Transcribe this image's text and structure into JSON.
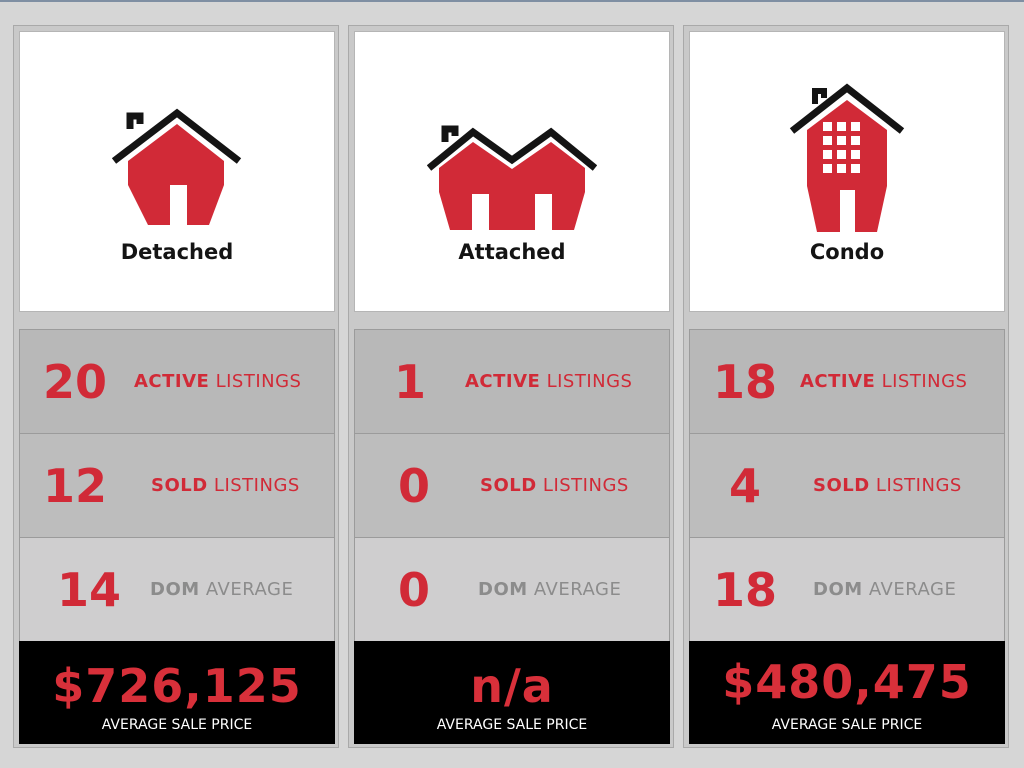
{
  "colors": {
    "accent": "#d12a37",
    "panel": "#c9c9c9",
    "price_bg": "#000000"
  },
  "columns": [
    {
      "icon": "detached-house-icon",
      "title": "Detached",
      "active": {
        "value": "20",
        "hl": "ACTIVE",
        "rest": "LISTINGS"
      },
      "sold": {
        "value": "12",
        "hl": "SOLD",
        "rest": "LISTINGS"
      },
      "dom": {
        "value": "14",
        "hl": "DOM",
        "rest": "AVERAGE"
      },
      "price": {
        "value": "$726,125",
        "label": "AVERAGE SALE PRICE"
      }
    },
    {
      "icon": "attached-house-icon",
      "title": "Attached",
      "active": {
        "value": "1",
        "hl": "ACTIVE",
        "rest": "LISTINGS"
      },
      "sold": {
        "value": "0",
        "hl": "SOLD",
        "rest": "LISTINGS"
      },
      "dom": {
        "value": "0",
        "hl": "DOM",
        "rest": "AVERAGE"
      },
      "price": {
        "value": "n/a",
        "label": "AVERAGE SALE PRICE"
      }
    },
    {
      "icon": "condo-building-icon",
      "title": "Condo",
      "active": {
        "value": "18",
        "hl": "ACTIVE",
        "rest": "LISTINGS"
      },
      "sold": {
        "value": "4",
        "hl": "SOLD",
        "rest": "LISTINGS"
      },
      "dom": {
        "value": "18",
        "hl": "DOM",
        "rest": "AVERAGE"
      },
      "price": {
        "value": "$480,475",
        "label": "AVERAGE SALE PRICE"
      }
    }
  ]
}
